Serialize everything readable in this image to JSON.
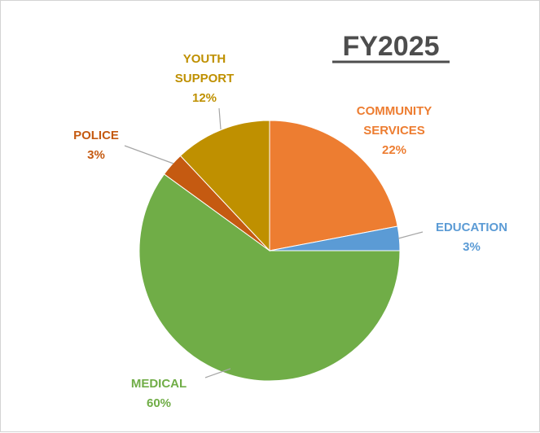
{
  "chart_data": {
    "type": "pie",
    "title": "FY2025",
    "slices": [
      {
        "name": "COMMUNITY SERVICES",
        "label_lines": [
          "COMMUNITY",
          "SERVICES"
        ],
        "value": 22,
        "display": "22%",
        "color": "#ED7D31"
      },
      {
        "name": "EDUCATION",
        "label_lines": [
          "EDUCATION"
        ],
        "value": 3,
        "display": "3%",
        "color": "#5B9BD5"
      },
      {
        "name": "MEDICAL",
        "label_lines": [
          "MEDICAL"
        ],
        "value": 60,
        "display": "60%",
        "color": "#70AD47"
      },
      {
        "name": "POLICE",
        "label_lines": [
          "POLICE"
        ],
        "value": 3,
        "display": "3%",
        "color": "#C55A11"
      },
      {
        "name": "YOUTH SUPPORT",
        "label_lines": [
          "YOUTH",
          "SUPPORT"
        ],
        "value": 12,
        "display": "12%",
        "color": "#BF9000"
      }
    ],
    "start_angle_deg": 0,
    "direction": "clockwise",
    "legend": "none",
    "grid": false
  }
}
